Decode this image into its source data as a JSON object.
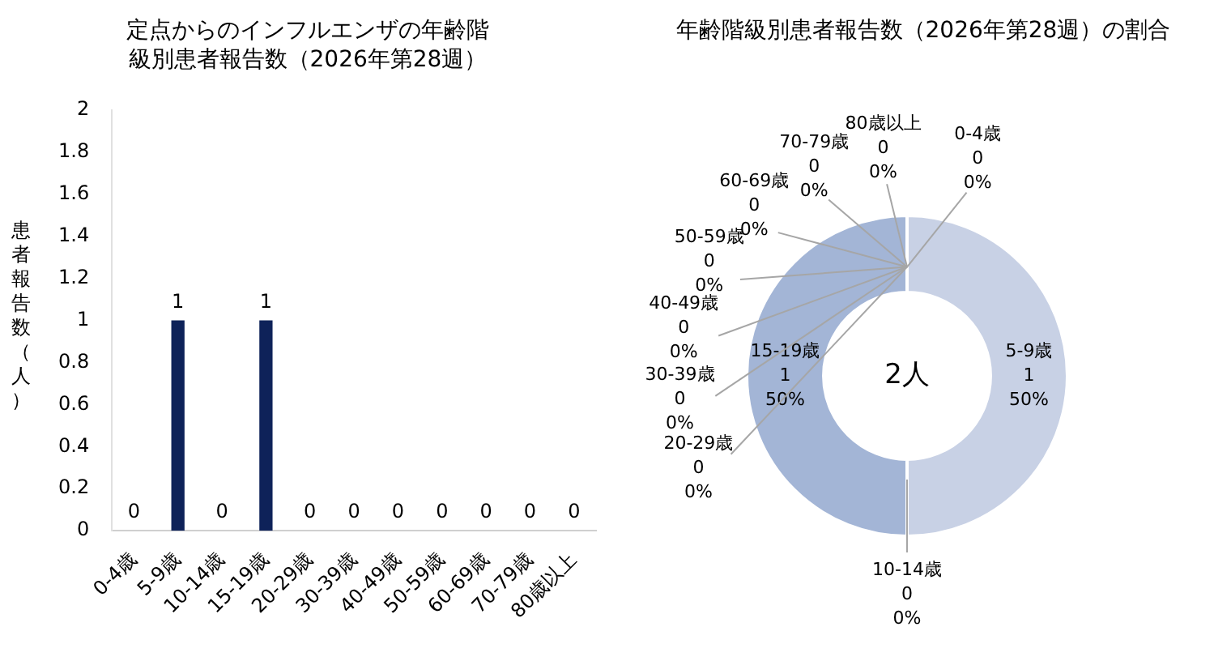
{
  "chart_data": [
    {
      "type": "bar",
      "title": "定点からのインフルエンザの年齢階級別患者報告数（2026年第28週）",
      "ylabel": "患者報告数（人）",
      "categories": [
        "0-4歳",
        "5-9歳",
        "10-14歳",
        "15-19歳",
        "20-29歳",
        "30-39歳",
        "40-49歳",
        "50-59歳",
        "60-69歳",
        "70-79歳",
        "80歳以上"
      ],
      "values": [
        0,
        1,
        0,
        1,
        0,
        0,
        0,
        0,
        0,
        0,
        0
      ],
      "color": "#0e2259",
      "ylim": [
        0,
        2
      ],
      "yticks": [
        0,
        0.2,
        0.4,
        0.6,
        0.8,
        1,
        1.2,
        1.4,
        1.6,
        1.8,
        2
      ],
      "data_labels": true
    },
    {
      "type": "donut",
      "title": "年齢階級別患者報告数（2026年第28週）の割合",
      "categories": [
        "0-4歳",
        "5-9歳",
        "10-14歳",
        "15-19歳",
        "20-29歳",
        "30-39歳",
        "40-49歳",
        "50-59歳",
        "60-69歳",
        "70-79歳",
        "80歳以上"
      ],
      "values": [
        0,
        1,
        0,
        1,
        0,
        0,
        0,
        0,
        0,
        0,
        0
      ],
      "colors": [
        "#dde3ef",
        "#c8d1e5",
        "#b5c3dd",
        "#a3b5d6",
        "#8fa5cd",
        "#7d96c4",
        "#6a87bb",
        "#5878b2",
        "#4669a9",
        "#375b9a",
        "#2b4d88"
      ],
      "value_labels": [
        "0\n0%",
        "1\n50%",
        "0\n0%",
        "1\n50%",
        "0\n0%",
        "0\n0%",
        "0\n0%",
        "0\n0%",
        "0\n0%",
        "0\n0%",
        "0\n0%"
      ],
      "annotations": [
        "2人"
      ]
    }
  ]
}
